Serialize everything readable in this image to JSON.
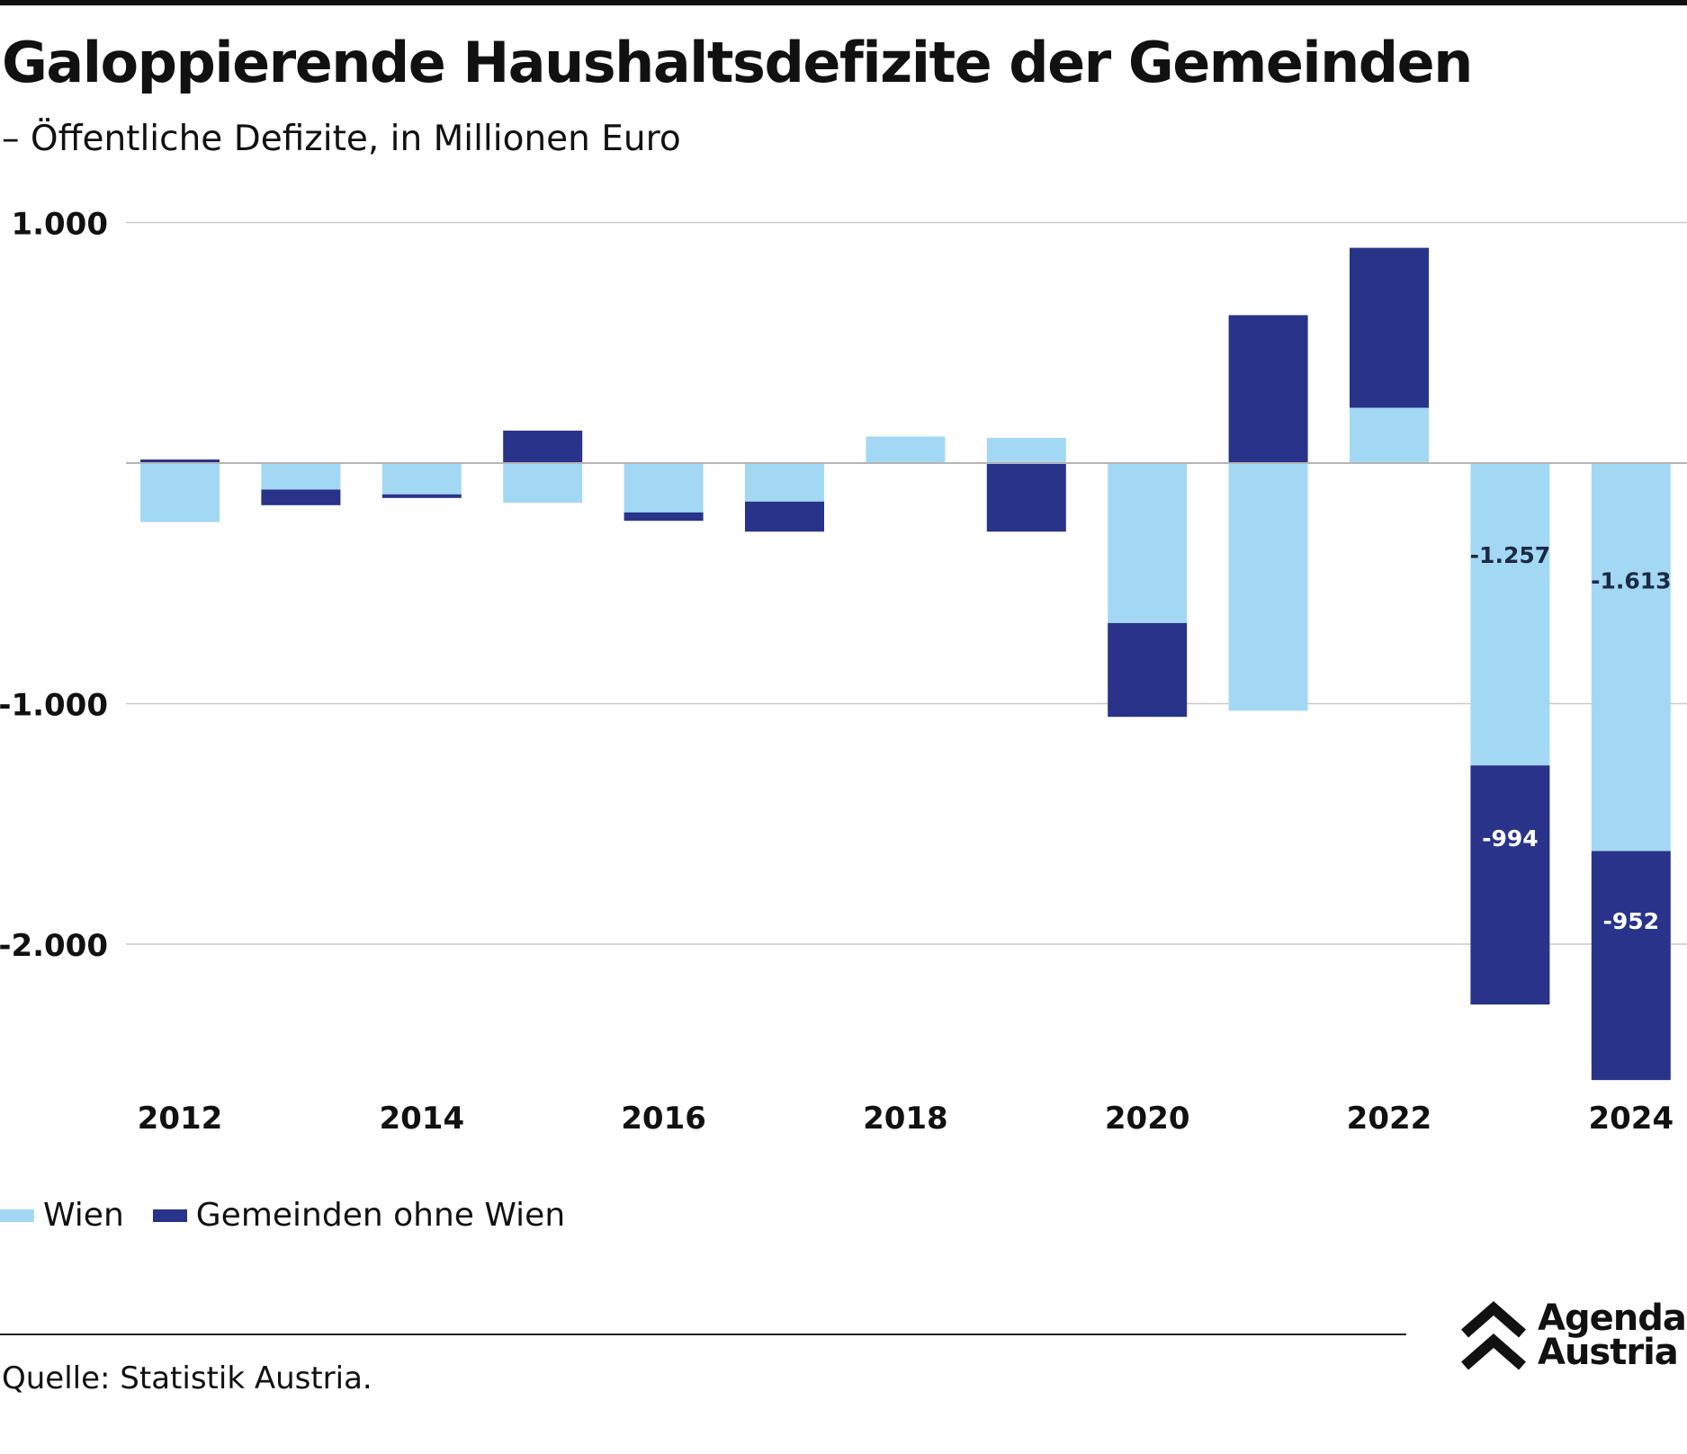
{
  "header": {
    "title": "Galoppierende Haushaltsdefizite der Gemeinden",
    "subtitle": "– Öffentliche Defizite, in Millionen Euro"
  },
  "legend": {
    "items": [
      {
        "label": "Wien",
        "color": "#a3d8f4"
      },
      {
        "label": "Gemeinden ohne Wien",
        "color": "#283389"
      }
    ]
  },
  "footer": {
    "source": "Quelle: Statistik Austria.",
    "logo_line1": "Agenda",
    "logo_line2": "Austria"
  },
  "chart_data": {
    "type": "bar",
    "stacked": true,
    "title": "Galoppierende Haushaltsdefizite der Gemeinden",
    "subtitle": "– Öffentliche Defizite, in Millionen Euro",
    "xlabel": "",
    "ylabel": "",
    "categories": [
      "2012",
      "2013",
      "2014",
      "2015",
      "2016",
      "2017",
      "2018",
      "2019",
      "2020",
      "2021",
      "2022",
      "2023",
      "2024"
    ],
    "x_tick_labels": [
      "2012",
      "",
      "2014",
      "",
      "2016",
      "",
      "2018",
      "",
      "2020",
      "",
      "2022",
      "",
      "2024"
    ],
    "ylim": [
      -2600,
      1000
    ],
    "y_ticks": [
      1000,
      -1000,
      -2000
    ],
    "y_tick_labels": [
      "1.000",
      "-1.000",
      "-2.000"
    ],
    "grid": true,
    "legend_position": "bottom-left",
    "series": [
      {
        "name": "Wien",
        "color": "#a3d8f4",
        "values": [
          -245,
          -110,
          -130,
          -165,
          -205,
          -160,
          110,
          105,
          -665,
          -1030,
          230,
          -1257,
          -1613
        ],
        "data_labels": [
          "",
          "",
          "",
          "",
          "",
          "",
          "",
          "",
          "",
          "",
          "",
          "-1.257",
          "-1.613"
        ]
      },
      {
        "name": "Gemeinden ohne Wien",
        "color": "#283389",
        "values": [
          15,
          -65,
          -15,
          135,
          -35,
          -125,
          0,
          -285,
          -390,
          615,
          665,
          -994,
          -952
        ],
        "data_labels": [
          "",
          "",
          "",
          "",
          "",
          "",
          "",
          "",
          "",
          "",
          "",
          "-994",
          "-952"
        ]
      }
    ]
  }
}
